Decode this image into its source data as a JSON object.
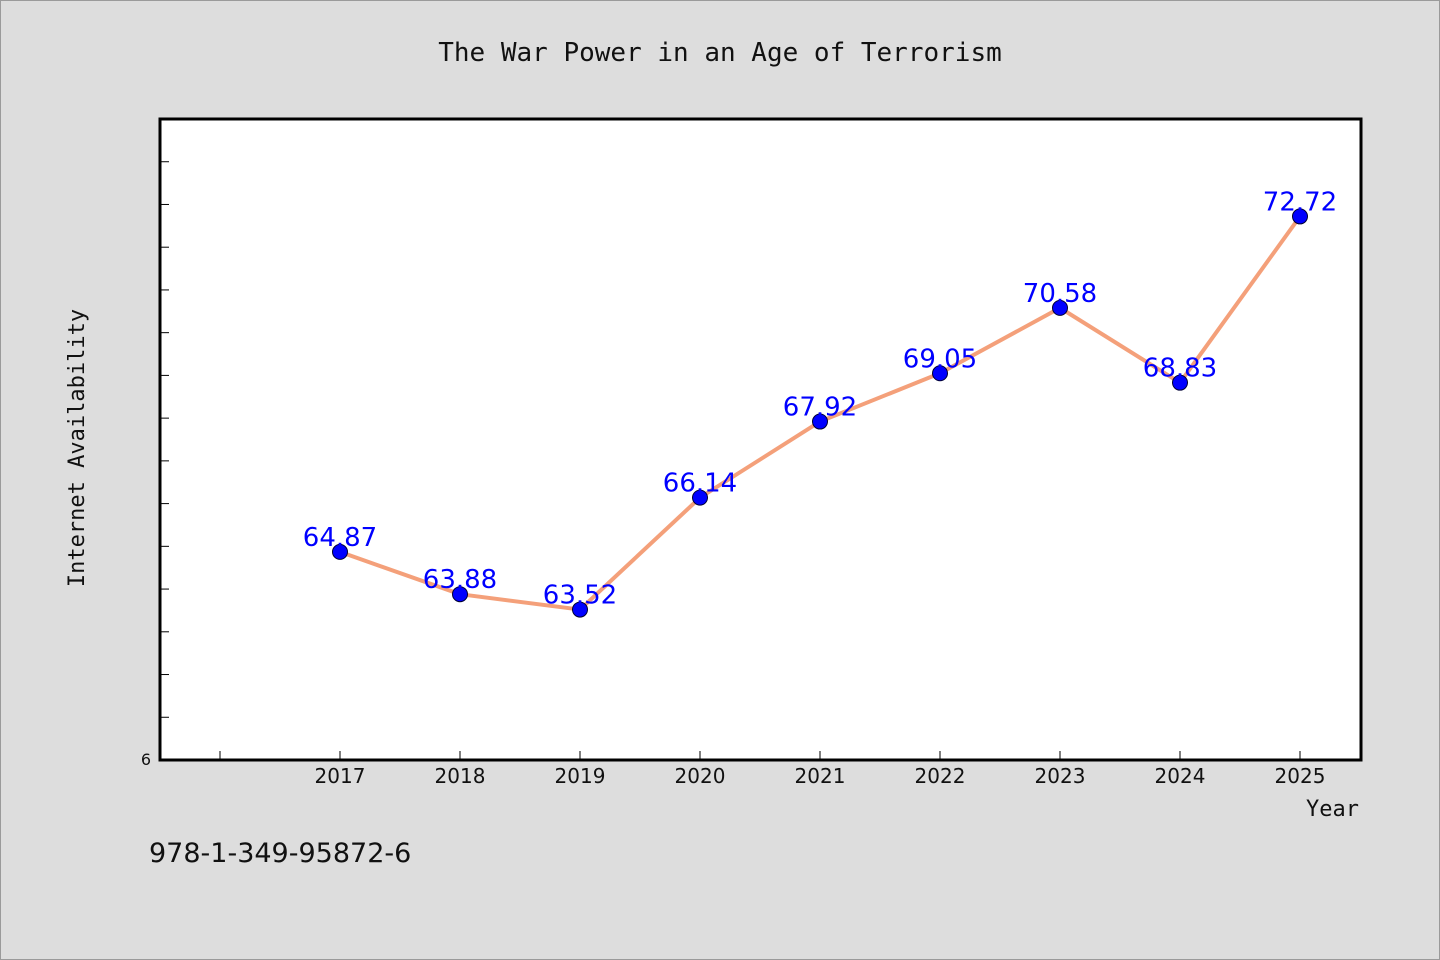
{
  "colors": {
    "background": "#dddddd",
    "plot_background": "#ffffff",
    "line": "#f4a07a",
    "marker": "#0000ff",
    "data_label": "#0000ff"
  },
  "footer": {
    "isbn": "978-1-349-95872-6"
  },
  "chart_data": {
    "type": "line",
    "title": "The War Power in an Age of Terrorism",
    "xlabel": "Year",
    "ylabel": "Internet Availability",
    "categories": [
      "2017",
      "2018",
      "2019",
      "2020",
      "2021",
      "2022",
      "2023",
      "2024",
      "2025"
    ],
    "y_origin_label": "6",
    "ylim": [
      60,
      75
    ],
    "grid": false,
    "legend": "none",
    "series": [
      {
        "values": [
          64.87,
          63.88,
          63.52,
          66.14,
          67.92,
          69.05,
          70.58,
          68.83,
          72.72
        ],
        "labels": [
          "64.87",
          "63.88",
          "63.52",
          "66.14",
          "67.92",
          "69.05",
          "70.58",
          "68.83",
          "72.72"
        ]
      }
    ]
  }
}
